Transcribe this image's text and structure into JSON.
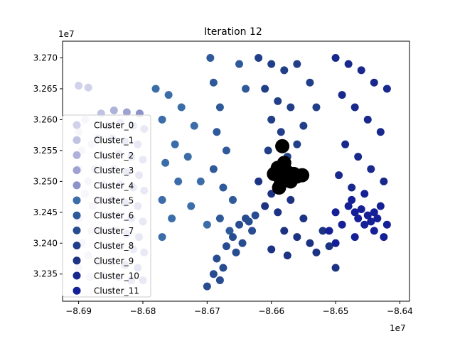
{
  "chart_data": {
    "type": "scatter",
    "title": "Iteration 12",
    "xlabel": "",
    "ylabel": "",
    "x_offset_label": "1e7",
    "y_offset_label": "1e7",
    "xlim": [
      -8.6925,
      -8.6385
    ],
    "ylim": [
      3.2306,
      3.2727
    ],
    "x_ticks": [
      -8.69,
      -8.68,
      -8.67,
      -8.66,
      -8.65,
      -8.64
    ],
    "x_tick_labels": [
      "−8.69",
      "−8.68",
      "−8.67",
      "−8.66",
      "−8.65",
      "−8.64"
    ],
    "y_ticks": [
      3.235,
      3.24,
      3.245,
      3.25,
      3.255,
      3.26,
      3.265,
      3.27
    ],
    "y_tick_labels": [
      "3.235",
      "3.240",
      "3.245",
      "3.250",
      "3.255",
      "3.260",
      "3.265",
      "3.270"
    ],
    "grid": false,
    "legend_position": "left",
    "series": [
      {
        "name": "Cluster_0",
        "color": "#d0d2ea",
        "points": [
          [
            -8.69,
            3.2655
          ],
          [
            -8.6885,
            3.2652
          ],
          [
            -8.689,
            3.26
          ],
          [
            -8.69,
            3.258
          ],
          [
            -8.688,
            3.256
          ],
          [
            -8.6895,
            3.255
          ],
          [
            -8.69,
            3.252
          ],
          [
            -8.6885,
            3.25
          ],
          [
            -8.689,
            3.248
          ],
          [
            -8.6878,
            3.246
          ],
          [
            -8.69,
            3.244
          ],
          [
            -8.688,
            3.242
          ],
          [
            -8.6895,
            3.24
          ],
          [
            -8.6885,
            3.238
          ],
          [
            -8.69,
            3.236
          ],
          [
            -8.6882,
            3.2345
          ]
        ]
      },
      {
        "name": "Cluster_1",
        "color": "#bfc2e2",
        "points": [
          [
            -8.6865,
            3.261
          ],
          [
            -8.6855,
            3.259
          ],
          [
            -8.687,
            3.257
          ],
          [
            -8.686,
            3.254
          ],
          [
            -8.6875,
            3.252
          ],
          [
            -8.6862,
            3.2495
          ],
          [
            -8.687,
            3.247
          ],
          [
            -8.6858,
            3.2445
          ],
          [
            -8.6868,
            3.242
          ],
          [
            -8.6855,
            3.2395
          ],
          [
            -8.687,
            3.237
          ],
          [
            -8.6862,
            3.2348
          ]
        ]
      },
      {
        "name": "Cluster_2",
        "color": "#aeb2da",
        "points": [
          [
            -8.6845,
            3.2615
          ],
          [
            -8.6835,
            3.2595
          ],
          [
            -8.6848,
            3.257
          ],
          [
            -8.6838,
            3.2545
          ],
          [
            -8.6845,
            3.252
          ],
          [
            -8.6835,
            3.2495
          ],
          [
            -8.6848,
            3.247
          ],
          [
            -8.6838,
            3.2445
          ],
          [
            -8.6845,
            3.242
          ],
          [
            -8.6835,
            3.2395
          ],
          [
            -8.6848,
            3.237
          ],
          [
            -8.6838,
            3.2345
          ]
        ]
      },
      {
        "name": "Cluster_3",
        "color": "#9da2d2",
        "points": [
          [
            -8.6825,
            3.2612
          ],
          [
            -8.6815,
            3.259
          ],
          [
            -8.6828,
            3.2565
          ],
          [
            -8.6818,
            3.254
          ],
          [
            -8.6825,
            3.2515
          ],
          [
            -8.6815,
            3.249
          ],
          [
            -8.6828,
            3.2465
          ],
          [
            -8.6818,
            3.244
          ],
          [
            -8.6825,
            3.2415
          ],
          [
            -8.6815,
            3.239
          ],
          [
            -8.6828,
            3.2365
          ],
          [
            -8.6818,
            3.234
          ]
        ]
      },
      {
        "name": "Cluster_4",
        "color": "#8c92ca",
        "points": [
          [
            -8.6805,
            3.261
          ],
          [
            -8.6798,
            3.2585
          ],
          [
            -8.6808,
            3.256
          ],
          [
            -8.68,
            3.2535
          ],
          [
            -8.6806,
            3.251
          ],
          [
            -8.6798,
            3.2485
          ],
          [
            -8.6808,
            3.246
          ],
          [
            -8.68,
            3.2435
          ],
          [
            -8.6806,
            3.241
          ],
          [
            -8.6798,
            3.2385
          ],
          [
            -8.6808,
            3.236
          ],
          [
            -8.68,
            3.234
          ]
        ]
      },
      {
        "name": "Cluster_5",
        "color": "#3b6ea8",
        "points": [
          [
            -8.678,
            3.265
          ],
          [
            -8.676,
            3.264
          ],
          [
            -8.677,
            3.26
          ],
          [
            -8.675,
            3.256
          ],
          [
            -8.6765,
            3.253
          ],
          [
            -8.6745,
            3.25
          ],
          [
            -8.677,
            3.247
          ],
          [
            -8.6755,
            3.244
          ],
          [
            -8.677,
            3.241
          ],
          [
            -8.674,
            3.262
          ],
          [
            -8.672,
            3.259
          ],
          [
            -8.673,
            3.254
          ],
          [
            -8.671,
            3.25
          ],
          [
            -8.6725,
            3.246
          ],
          [
            -8.67,
            3.243
          ]
        ]
      },
      {
        "name": "Cluster_6",
        "color": "#2f5a9a",
        "points": [
          [
            -8.6695,
            3.27
          ],
          [
            -8.669,
            3.266
          ],
          [
            -8.668,
            3.262
          ],
          [
            -8.6685,
            3.258
          ],
          [
            -8.667,
            3.255
          ],
          [
            -8.669,
            3.252
          ],
          [
            -8.6675,
            3.249
          ],
          [
            -8.666,
            3.247
          ],
          [
            -8.668,
            3.244
          ],
          [
            -8.6665,
            3.242
          ],
          [
            -8.665,
            3.269
          ],
          [
            -8.664,
            3.265
          ]
        ]
      },
      {
        "name": "Cluster_7",
        "color": "#284c90",
        "points": [
          [
            -8.664,
            3.244
          ],
          [
            -8.665,
            3.243
          ],
          [
            -8.663,
            3.242
          ],
          [
            -8.666,
            3.241
          ],
          [
            -8.6645,
            3.24
          ],
          [
            -8.6635,
            3.2435
          ],
          [
            -8.6625,
            3.2445
          ],
          [
            -8.667,
            3.2395
          ],
          [
            -8.6655,
            3.2385
          ],
          [
            -8.6685,
            3.2375
          ],
          [
            -8.669,
            3.235
          ],
          [
            -8.6675,
            3.236
          ],
          [
            -8.67,
            3.233
          ],
          [
            -8.668,
            3.234
          ]
        ]
      },
      {
        "name": "Cluster_8",
        "color": "#213f88",
        "points": [
          [
            -8.662,
            3.27
          ],
          [
            -8.66,
            3.269
          ],
          [
            -8.658,
            3.268
          ],
          [
            -8.661,
            3.265
          ],
          [
            -8.659,
            3.263
          ],
          [
            -8.657,
            3.262
          ],
          [
            -8.66,
            3.26
          ],
          [
            -8.6585,
            3.258
          ],
          [
            -8.656,
            3.256
          ],
          [
            -8.6605,
            3.255
          ],
          [
            -8.6575,
            3.254
          ],
          [
            -8.655,
            3.259
          ],
          [
            -8.653,
            3.262
          ],
          [
            -8.654,
            3.266
          ],
          [
            -8.656,
            3.269
          ]
        ]
      },
      {
        "name": "Cluster_9",
        "color": "#1c3282",
        "points": [
          [
            -8.662,
            3.25
          ],
          [
            -8.66,
            3.248
          ],
          [
            -8.661,
            3.246
          ],
          [
            -8.659,
            3.245
          ],
          [
            -8.657,
            3.247
          ],
          [
            -8.655,
            3.244
          ],
          [
            -8.658,
            3.242
          ],
          [
            -8.656,
            3.241
          ],
          [
            -8.654,
            3.24
          ],
          [
            -8.66,
            3.239
          ],
          [
            -8.6575,
            3.238
          ],
          [
            -8.653,
            3.2385
          ],
          [
            -8.651,
            3.2395
          ],
          [
            -8.65,
            3.236
          ],
          [
            -8.652,
            3.242
          ]
        ]
      },
      {
        "name": "Cluster_10",
        "color": "#18288c",
        "points": [
          [
            -8.65,
            3.27
          ],
          [
            -8.648,
            3.269
          ],
          [
            -8.646,
            3.268
          ],
          [
            -8.644,
            3.266
          ],
          [
            -8.642,
            3.265
          ],
          [
            -8.649,
            3.264
          ],
          [
            -8.647,
            3.262
          ],
          [
            -8.645,
            3.26
          ],
          [
            -8.643,
            3.258
          ],
          [
            -8.6485,
            3.256
          ],
          [
            -8.6465,
            3.254
          ],
          [
            -8.6445,
            3.252
          ],
          [
            -8.6425,
            3.25
          ],
          [
            -8.6495,
            3.251
          ],
          [
            -8.6475,
            3.249
          ]
        ]
      },
      {
        "name": "Cluster_11",
        "color": "#151f96",
        "points": [
          [
            -8.648,
            3.246
          ],
          [
            -8.647,
            3.245
          ],
          [
            -8.646,
            3.2455
          ],
          [
            -8.645,
            3.2445
          ],
          [
            -8.644,
            3.245
          ],
          [
            -8.6465,
            3.244
          ],
          [
            -8.6455,
            3.243
          ],
          [
            -8.6445,
            3.2435
          ],
          [
            -8.6435,
            3.244
          ],
          [
            -8.6475,
            3.247
          ],
          [
            -8.649,
            3.243
          ],
          [
            -8.643,
            3.246
          ],
          [
            -8.642,
            3.243
          ],
          [
            -8.65,
            3.245
          ],
          [
            -8.651,
            3.242
          ],
          [
            -8.65,
            3.24
          ],
          [
            -8.647,
            3.241
          ],
          [
            -8.644,
            3.242
          ],
          [
            -8.6425,
            3.241
          ],
          [
            -8.6455,
            3.248
          ]
        ]
      }
    ],
    "centroids": {
      "color": "#000000",
      "points": [
        [
          -8.6583,
          3.2557
        ],
        [
          -8.659,
          3.2522
        ],
        [
          -8.6578,
          3.2505
        ],
        [
          -8.6565,
          3.2512
        ],
        [
          -8.6585,
          3.2498
        ],
        [
          -8.6552,
          3.251
        ],
        [
          -8.6596,
          3.2512
        ],
        [
          -8.658,
          3.253
        ],
        [
          -8.657,
          3.25
        ],
        [
          -8.6588,
          3.249
        ],
        [
          -8.656,
          3.2508
        ],
        [
          -8.6575,
          3.2515
        ]
      ]
    }
  }
}
